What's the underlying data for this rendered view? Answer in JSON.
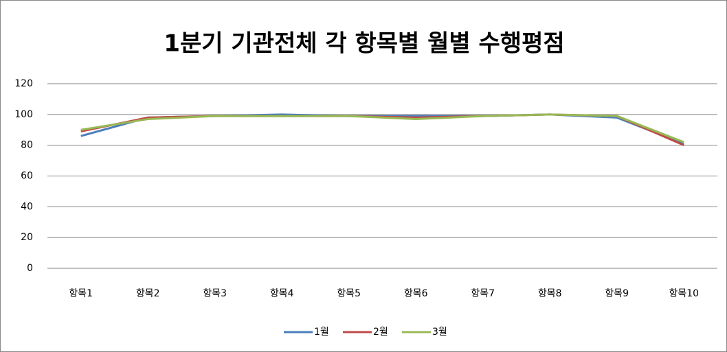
{
  "chart_data": {
    "type": "line",
    "title": "1분기 기관전체 각 항목별 월별 수행평점",
    "categories": [
      "항목1",
      "항목2",
      "항목3",
      "항목4",
      "항목5",
      "항목6",
      "항목7",
      "항목8",
      "항목9",
      "항목10"
    ],
    "series": [
      {
        "name": "1월",
        "color": "#4a7ebb",
        "values": [
          86,
          98,
          99,
          100,
          99,
          99,
          99,
          100,
          98,
          81
        ]
      },
      {
        "name": "2월",
        "color": "#be4b48",
        "values": [
          89,
          98,
          99,
          99,
          99,
          98,
          99,
          100,
          99,
          80
        ]
      },
      {
        "name": "3월",
        "color": "#98b954",
        "values": [
          90,
          97,
          99,
          99,
          99,
          97,
          99,
          100,
          99,
          82
        ]
      }
    ],
    "ylim": [
      0,
      120
    ],
    "yticks": [
      0,
      20,
      40,
      60,
      80,
      100,
      120
    ],
    "grid": true,
    "legend": "bottom"
  }
}
